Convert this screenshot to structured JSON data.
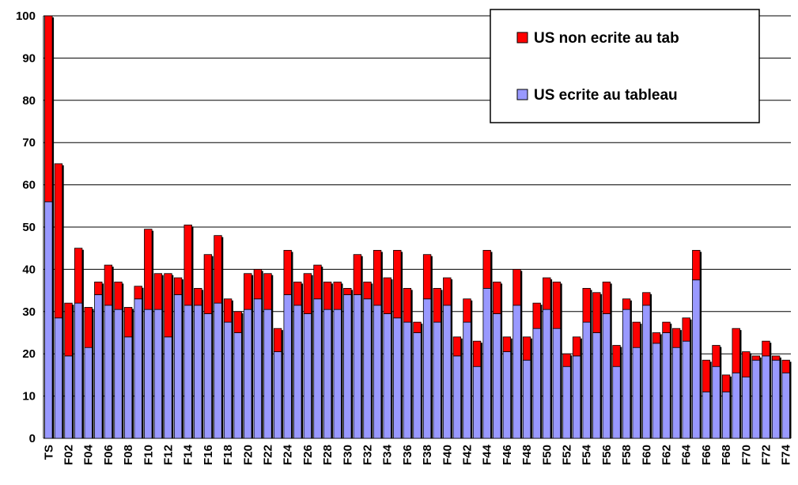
{
  "chart_data": {
    "type": "stacked_bar",
    "categories": [
      "TS",
      null,
      "F02",
      null,
      "F04",
      null,
      "F06",
      null,
      "F08",
      null,
      "F10",
      null,
      "F12",
      null,
      "F14",
      null,
      "F16",
      null,
      "F18",
      null,
      "F20",
      null,
      "F22",
      null,
      "F24",
      null,
      "F26",
      null,
      "F28",
      null,
      "F30",
      null,
      "F32",
      null,
      "F34",
      null,
      "F36",
      null,
      "F38",
      null,
      "F40",
      null,
      "F42",
      null,
      "F44",
      null,
      "F46",
      null,
      "F48",
      null,
      "F50",
      null,
      "F52",
      null,
      "F54",
      null,
      "F56",
      null,
      "F58",
      null,
      "F60",
      null,
      "F62",
      null,
      "F64",
      null,
      "F66",
      null,
      "F68",
      null,
      "F70",
      null,
      "F72",
      null,
      "F74"
    ],
    "series": [
      {
        "name": "US ecrite au tableau",
        "color": "#9999ff",
        "values": [
          56,
          28.5,
          19.5,
          32,
          21.5,
          34,
          31.5,
          30.5,
          24,
          33,
          30.5,
          30.5,
          24,
          34,
          31.5,
          31.5,
          29.5,
          32,
          27.5,
          25,
          30.5,
          33,
          30.5,
          20.5,
          34,
          31.5,
          29.5,
          33,
          30.5,
          30.5,
          34,
          34,
          33,
          31.5,
          29.5,
          28.5,
          27.5,
          25,
          33,
          27.5,
          31.5,
          19.5,
          27.5,
          17,
          35.5,
          29.5,
          20.5,
          31.5,
          18.5,
          26,
          30.5,
          26,
          17,
          19.5,
          27.5,
          25,
          29.5,
          17,
          30.5,
          21.5,
          31.5,
          22.5,
          25,
          21.5,
          23,
          37.5,
          11,
          17,
          11,
          15.5,
          14.5,
          18.5,
          19.5,
          18.5,
          15.5
        ]
      },
      {
        "name": "US non ecrite au tab",
        "color": "#ff0000",
        "values": [
          44,
          36.5,
          12.5,
          13,
          9.5,
          3,
          9.5,
          6.5,
          7,
          3,
          19,
          8.5,
          15,
          4,
          19,
          4,
          14,
          16,
          5.5,
          5,
          8.5,
          7,
          8.5,
          5.5,
          10.5,
          5.5,
          9.5,
          8,
          6.5,
          6.5,
          1.5,
          9.5,
          4,
          13,
          8.5,
          16,
          8,
          2.5,
          10.5,
          8,
          6.5,
          4.5,
          5.5,
          6,
          9,
          7.5,
          3.5,
          8.5,
          5.5,
          6,
          7.5,
          11,
          3,
          4.5,
          8,
          9.5,
          7.5,
          5,
          2.5,
          6,
          3,
          2.5,
          2.5,
          4.5,
          5.5,
          7,
          7.5,
          5,
          4,
          10.5,
          6,
          1,
          3.5,
          1,
          3
        ]
      }
    ],
    "ylim": [
      0,
      100
    ],
    "yticks": [
      0,
      10,
      20,
      30,
      40,
      50,
      60,
      70,
      80,
      90,
      100
    ],
    "grid": true,
    "legend": "upper right"
  }
}
